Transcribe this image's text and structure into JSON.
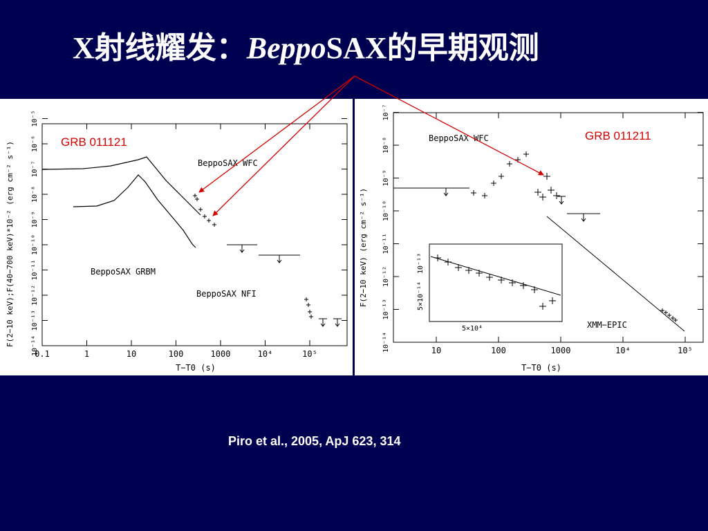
{
  "slide": {
    "title_prefix": "X射线耀发：",
    "title_italic": "Beppo",
    "title_bold": "SAX",
    "title_suffix": "的早期观测",
    "citation": "Piro et al., 2005, ApJ 623, 314",
    "background_color": "#000050",
    "arrow_color": "#d40000"
  },
  "left_panel": {
    "grb_label": "GRB 011121",
    "ylabel": "F(2−10 keV);F(40−700 keV)*10⁻² (erg cm⁻² s⁻¹)",
    "xlabel": "T−T0 (s)",
    "x_ticks": [
      "0.1",
      "1",
      "10",
      "100",
      "1000",
      "10⁴",
      "10⁵"
    ],
    "y_ticks": [
      "10⁻¹⁴",
      "10⁻¹³",
      "10⁻¹²",
      "10⁻¹¹",
      "10⁻¹⁰",
      "10⁻⁹",
      "10⁻⁸",
      "10⁻⁷",
      "10⁻⁶",
      "10⁻⁵"
    ],
    "labels": {
      "wfc": "BeppoSAX WFC",
      "grbm": "BeppoSAX GRBM",
      "nfi": "BeppoSAX NFI"
    }
  },
  "right_panel": {
    "grb_label": "GRB 011211",
    "ylabel": "F(2−10 keV) (erg cm⁻² s⁻¹)",
    "xlabel": "T−T0 (s)",
    "x_ticks": [
      "10",
      "100",
      "1000",
      "10⁴",
      "10⁵"
    ],
    "y_ticks": [
      "10⁻¹⁴",
      "10⁻¹³",
      "10⁻¹²",
      "10⁻¹¹",
      "10⁻¹⁰",
      "10⁻⁹",
      "10⁻⁸",
      "10⁻⁷"
    ],
    "labels": {
      "wfc": "BeppoSAX WFC",
      "epic": "XMM−EPIC"
    },
    "inset": {
      "x_tick": "5×10⁴",
      "y_tick_top": "10⁻¹³",
      "y_tick_mid": "5×10⁻¹⁴"
    }
  }
}
